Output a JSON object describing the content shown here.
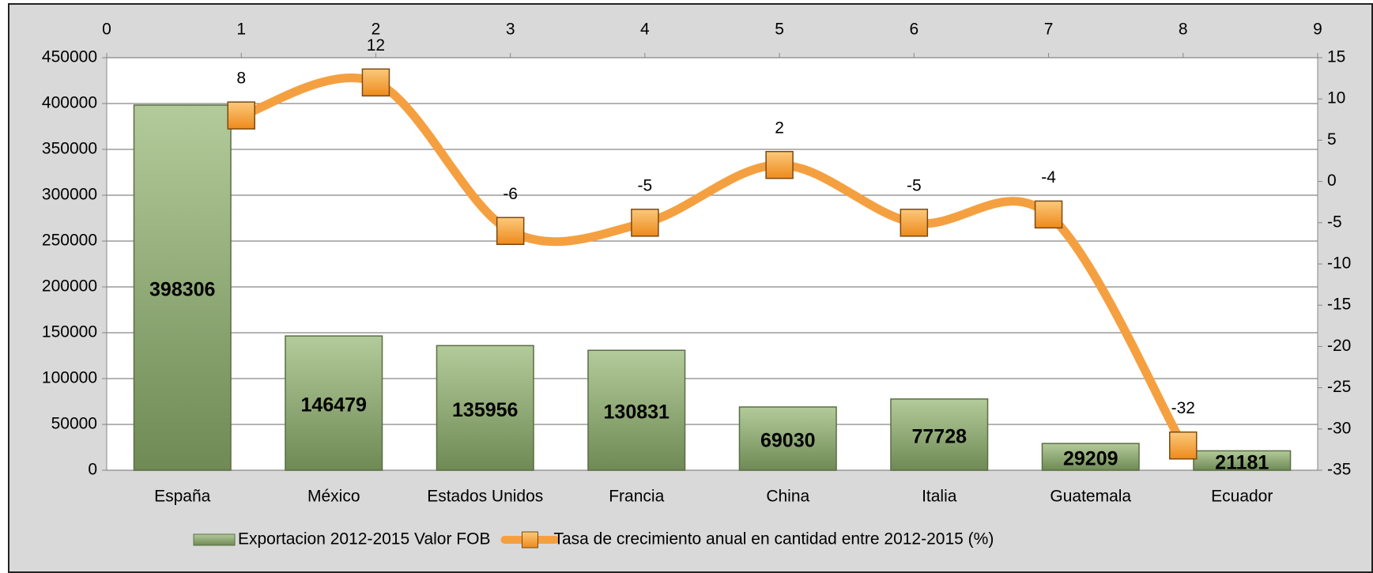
{
  "chart_data": {
    "type": "bar",
    "categories": [
      "España",
      "México",
      "Estados Unidos",
      "Francia",
      "China",
      "Italia",
      "Guatemala",
      "Ecuador"
    ],
    "series": [
      {
        "name": "Exportacion 2012-2015 Valor FOB",
        "type": "bar",
        "color": "#9bb77f",
        "values": [
          398306,
          146479,
          135956,
          130831,
          69030,
          77728,
          29209,
          21181
        ]
      },
      {
        "name": "Tasa de crecimiento anual en cantidad entre 2012-2015 (%)",
        "type": "line",
        "axis": "y2",
        "color": "#f5a040",
        "x": [
          1,
          2,
          3,
          4,
          5,
          6,
          7,
          8
        ],
        "values": [
          8,
          12,
          -6,
          -5,
          2,
          -5,
          -4,
          -32
        ]
      }
    ],
    "ylim": [
      0,
      450000
    ],
    "yticks": [
      0,
      50000,
      100000,
      150000,
      200000,
      250000,
      300000,
      350000,
      400000,
      450000
    ],
    "y2lim": [
      -35,
      15
    ],
    "y2ticks": [
      -35,
      -30,
      -25,
      -20,
      -15,
      -10,
      -5,
      0,
      5,
      10,
      15
    ],
    "xlim": [
      0,
      9
    ],
    "xticks": [
      0,
      1,
      2,
      3,
      4,
      5,
      6,
      7,
      8,
      9
    ],
    "grid": true,
    "legend": "bottom"
  }
}
